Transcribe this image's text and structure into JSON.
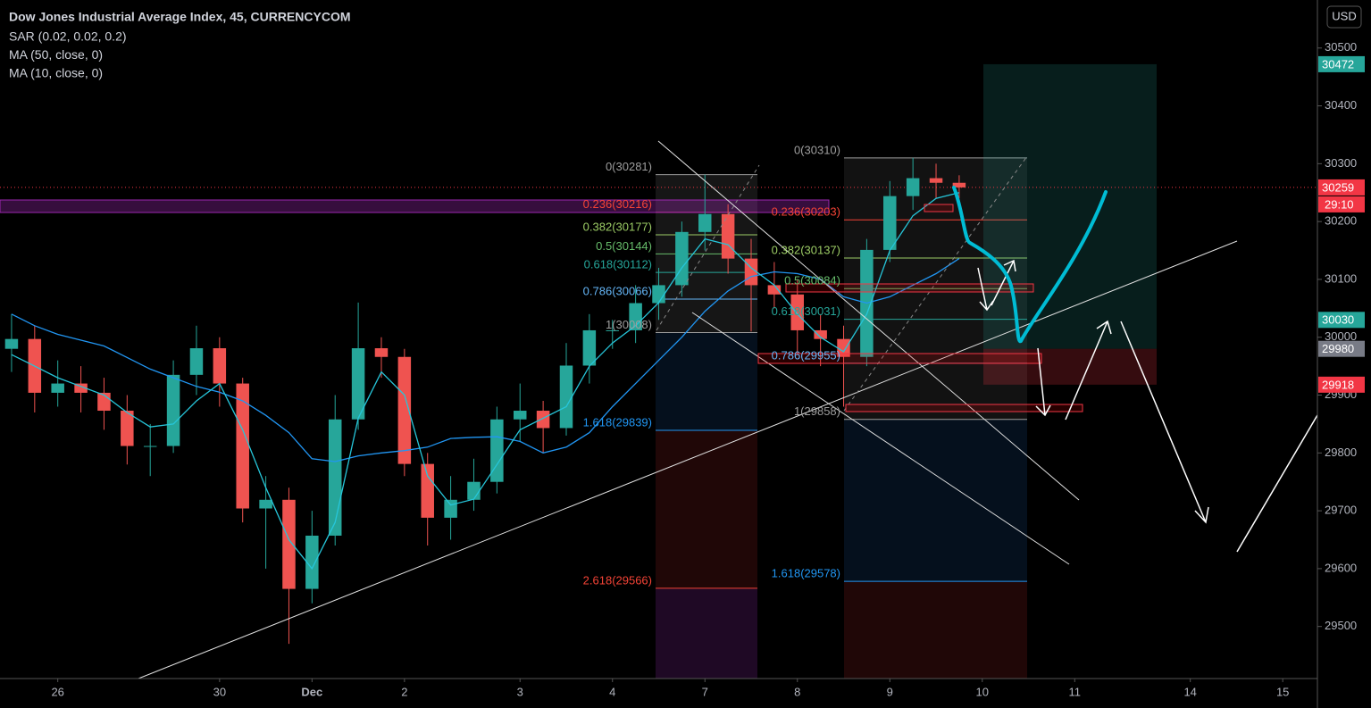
{
  "chart_data": {
    "type": "candlestick",
    "title": "Dow Jones Industrial Average Index, 45, CURRENCYCOM",
    "currency": "USD",
    "indicators": [
      {
        "name": "SAR (0.02, 0.02, 0.2)"
      },
      {
        "name": "MA (50, close, 0)",
        "color": "#2196f3",
        "values": [
          30040,
          30020,
          30005,
          29995,
          29985,
          29965,
          29945,
          29930,
          29915,
          29905,
          29890,
          29865,
          29835,
          29790,
          29785,
          29795,
          29800,
          29804,
          29810,
          29825,
          29827,
          29828,
          29820,
          29800,
          29810,
          29835,
          29880,
          29920,
          29960,
          30000,
          30045,
          30080,
          30105,
          30113,
          30110,
          30100,
          30070,
          30059,
          30070,
          30090,
          30110,
          30136,
          null,
          null,
          null,
          null,
          null,
          null,
          null,
          null,
          null,
          null,
          null,
          null,
          null,
          null,
          null
        ]
      },
      {
        "name": "MA (10, close, 0)",
        "color": "#26c6da",
        "values": [
          29970,
          29950,
          29930,
          29915,
          29900,
          29870,
          29845,
          29850,
          29890,
          29920,
          29840,
          29740,
          29650,
          29600,
          29680,
          29860,
          29940,
          29900,
          29760,
          29710,
          29720,
          29780,
          29840,
          29860,
          29880,
          29950,
          29990,
          30020,
          30060,
          30120,
          30170,
          30160,
          30120,
          30090,
          30040,
          30000,
          29975,
          30040,
          30150,
          30210,
          30240,
          30250,
          null,
          null,
          null,
          null,
          null,
          null,
          null,
          null,
          null,
          null,
          null,
          null,
          null,
          null,
          null
        ]
      }
    ],
    "categories": [
      null,
      null,
      "26",
      null,
      null,
      null,
      null,
      null,
      null,
      "30",
      null,
      null,
      null,
      "Dec",
      null,
      null,
      null,
      "2",
      null,
      null,
      null,
      null,
      "3",
      null,
      null,
      null,
      "4",
      null,
      null,
      null,
      "7",
      null,
      null,
      null,
      "8",
      null,
      null,
      null,
      "9",
      null,
      null,
      null,
      "10",
      null,
      null,
      null,
      "11",
      null,
      null,
      null,
      null,
      "14",
      null,
      null,
      null,
      "15",
      null
    ],
    "open": [
      29980,
      29997,
      29904,
      29920,
      29904,
      29873,
      29812,
      29812,
      29935,
      29981,
      29920,
      29704,
      29719,
      29565,
      29657,
      29858,
      29981,
      29966,
      29781,
      29688,
      29719,
      29750,
      29858,
      29873,
      29843,
      29951,
      30012,
      30012,
      30059,
      30090,
      30182,
      30213,
      30136,
      30090,
      30074,
      30012,
      29997,
      29966,
      30151,
      30244,
      30275,
      30267,
      null,
      null,
      null,
      null,
      null,
      null,
      null,
      null,
      null,
      null,
      null,
      null,
      null,
      null,
      null
    ],
    "high": [
      30040,
      30020,
      29960,
      29950,
      29930,
      29900,
      29850,
      29960,
      30020,
      30000,
      29930,
      29760,
      29740,
      29700,
      29900,
      30060,
      30000,
      29980,
      29800,
      29760,
      29790,
      29880,
      29920,
      29890,
      29990,
      30040,
      30030,
      30090,
      30120,
      30200,
      30281,
      30230,
      30170,
      30130,
      30100,
      30040,
      30020,
      30170,
      30270,
      30310,
      30300,
      30280,
      null,
      null,
      null,
      null,
      null,
      null,
      null,
      null,
      null,
      null,
      null,
      null,
      null,
      null,
      null
    ],
    "low": [
      29940,
      29870,
      29880,
      29870,
      29840,
      29780,
      29760,
      29800,
      29900,
      29880,
      29680,
      29600,
      29470,
      29540,
      29640,
      29840,
      29930,
      29760,
      29640,
      29650,
      29700,
      29730,
      29820,
      29800,
      29830,
      29920,
      29980,
      29990,
      30030,
      30070,
      30150,
      30110,
      30010,
      30050,
      29970,
      29950,
      29880,
      29950,
      30130,
      30220,
      30240,
      30240,
      null,
      null,
      null,
      null,
      null,
      null,
      null,
      null,
      null,
      null,
      null,
      null,
      null,
      null,
      null
    ],
    "close": [
      29997,
      29904,
      29920,
      29904,
      29873,
      29812,
      29812,
      29935,
      29981,
      29920,
      29704,
      29719,
      29565,
      29657,
      29858,
      29981,
      29966,
      29781,
      29688,
      29719,
      29750,
      29858,
      29873,
      29843,
      29951,
      30012,
      30012,
      30059,
      30090,
      30182,
      30213,
      30136,
      30090,
      30074,
      30012,
      29997,
      29966,
      30151,
      30244,
      30275,
      30267,
      30259,
      null,
      null,
      null,
      null,
      null,
      null,
      null,
      null,
      null,
      null,
      null,
      null,
      null,
      null,
      null
    ],
    "up_color": "#26a69a",
    "down_color": "#ef5350",
    "ylim": [
      29410,
      30583
    ],
    "yticks": [
      29500,
      29600,
      29700,
      29800,
      29900,
      30000,
      30100,
      30200,
      30300,
      30400,
      30500
    ],
    "price_tags": [
      {
        "value": 30472,
        "color": "#26a69a"
      },
      {
        "value": 30259,
        "color": "#f23645",
        "countdown": "29:10"
      },
      {
        "value": 30030,
        "color": "#26a69a"
      },
      {
        "value": 29980,
        "color": "#787b86"
      },
      {
        "value": 29918,
        "color": "#f23645"
      }
    ],
    "fib_groups": [
      {
        "levels": [
          {
            "value": 30281,
            "label": "0(30281)",
            "color": "#9e9e9e"
          },
          {
            "value": 30216,
            "label": "0.236(30216)",
            "color": "#f44336"
          },
          {
            "value": 30177,
            "label": "0.382(30177)",
            "color": "#9ccc65"
          },
          {
            "value": 30144,
            "label": "0.5(30144)",
            "color": "#66bb6a"
          },
          {
            "value": 30112,
            "label": "0.618(30112)",
            "color": "#26a69a"
          },
          {
            "value": 30066,
            "label": "0.786(30066)",
            "color": "#64b5f6"
          },
          {
            "value": 30008,
            "label": "1(30008)",
            "color": "#9e9e9e"
          },
          {
            "value": 29839,
            "label": "1.618(29839)",
            "color": "#2196f3"
          },
          {
            "value": 29566,
            "label": "2.618(29566)",
            "color": "#f44336"
          }
        ]
      },
      {
        "levels": [
          {
            "value": 30310,
            "label": "0(30310)",
            "color": "#9e9e9e"
          },
          {
            "value": 30203,
            "label": "0.236(30203)",
            "color": "#f44336"
          },
          {
            "value": 30137,
            "label": "0.382(30137)",
            "color": "#9ccc65"
          },
          {
            "value": 30084,
            "label": "0.5(30084)",
            "color": "#66bb6a"
          },
          {
            "value": 30031,
            "label": "0.618(30031)",
            "color": "#26a69a"
          },
          {
            "value": 29955,
            "label": "0.786(29955)",
            "color": "#64b5f6"
          },
          {
            "value": 29858,
            "label": "1(29858)",
            "color": "#9e9e9e"
          },
          {
            "value": 29578,
            "label": "1.618(29578)",
            "color": "#2196f3"
          }
        ]
      }
    ]
  }
}
